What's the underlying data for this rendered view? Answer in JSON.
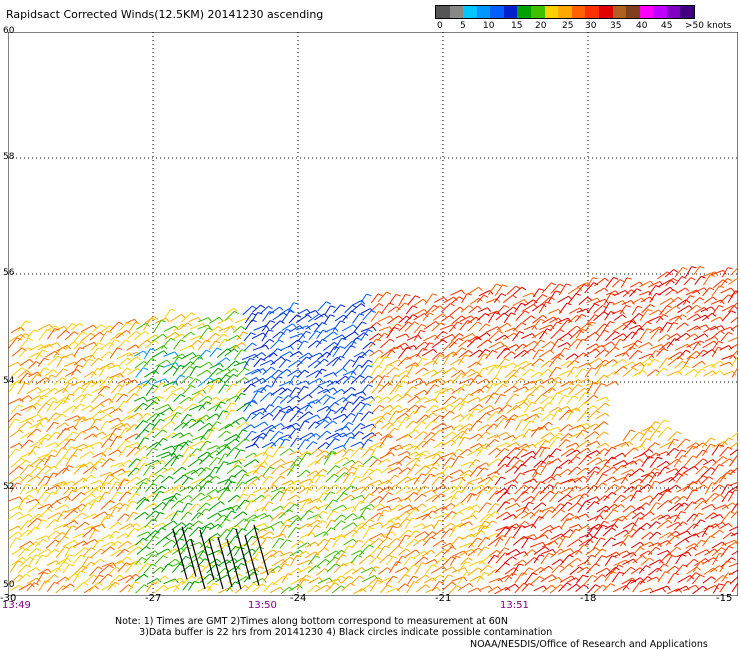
{
  "title": "Rapidsact Corrected Winds(12.5KM) 20141230 ascending",
  "colorbar": {
    "colors": [
      "#555555",
      "#888888",
      "#00c8ff",
      "#0096ff",
      "#0060ff",
      "#0020d0",
      "#00a000",
      "#40c000",
      "#ffd000",
      "#ffa800",
      "#ff6000",
      "#ff3000",
      "#e00000",
      "#b06020",
      "#804020",
      "#ff00ff",
      "#c000ff",
      "#8000c0",
      "#400080"
    ],
    "tick_labels": [
      "0",
      "5",
      "10",
      "15",
      "20",
      "25",
      "30",
      "35",
      "40",
      "45",
      ">50 knots"
    ]
  },
  "map": {
    "lat_labels": [
      "60",
      "58",
      "56",
      "54",
      "52",
      "50"
    ],
    "lon_labels": [
      "-30",
      "-27",
      "-24",
      "-21",
      "-18",
      "-15"
    ],
    "time_labels": [
      "13:49",
      "13:50",
      "13:51"
    ],
    "region": {
      "lat_range": [
        50,
        60
      ],
      "lon_range": [
        -30,
        -15
      ]
    },
    "gridlines": "dotted"
  },
  "notes": "Note: 1) Times are GMT 2)Times along bottom correspond to measurement at 60N\n        3)Data buffer is 22 hrs from 20141230 4) Black circles indicate possible contamination",
  "credit": "NOAA/NESDIS/Office of Research and Applications"
}
